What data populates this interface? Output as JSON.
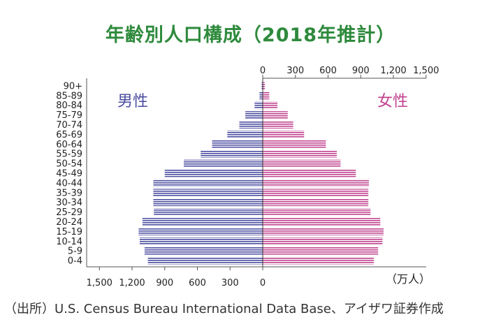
{
  "title": "年齢別人口構成（2018年推計）",
  "source": "（出所）U.S. Census Bureau International Data Base、アイザワ証券作成",
  "unit_label": "（万人）",
  "colors": {
    "title": "#2e8a3c",
    "male": "#4b4ea0",
    "female": "#c0428f"
  },
  "chart_data": {
    "type": "bar",
    "orientation": "horizontal-population-pyramid",
    "categories": [
      "0-4",
      "5-9",
      "10-14",
      "15-19",
      "20-24",
      "25-29",
      "30-34",
      "35-39",
      "40-44",
      "45-49",
      "50-54",
      "55-59",
      "60-64",
      "65-69",
      "70-74",
      "75-79",
      "80-84",
      "85-89",
      "90+"
    ],
    "series": [
      {
        "name": "男性",
        "values": [
          1055,
          1085,
          1130,
          1140,
          1105,
          1000,
          1005,
          1005,
          1005,
          900,
          725,
          570,
          465,
          325,
          215,
          160,
          75,
          30,
          10
        ]
      },
      {
        "name": "女性",
        "values": [
          1020,
          1060,
          1100,
          1110,
          1080,
          990,
          970,
          970,
          975,
          855,
          715,
          680,
          580,
          380,
          280,
          230,
          135,
          60,
          20
        ]
      }
    ],
    "xlim": [
      0,
      1500
    ],
    "ticks": [
      0,
      300,
      600,
      900,
      1200,
      1500
    ],
    "tick_labels_right": [
      "0",
      "300",
      "600",
      "900",
      "1,200",
      "1,500"
    ],
    "tick_labels_left": [
      "1,500",
      "1,200",
      "900",
      "600",
      "300",
      "0"
    ],
    "bar_style": "horizontal stripes"
  }
}
